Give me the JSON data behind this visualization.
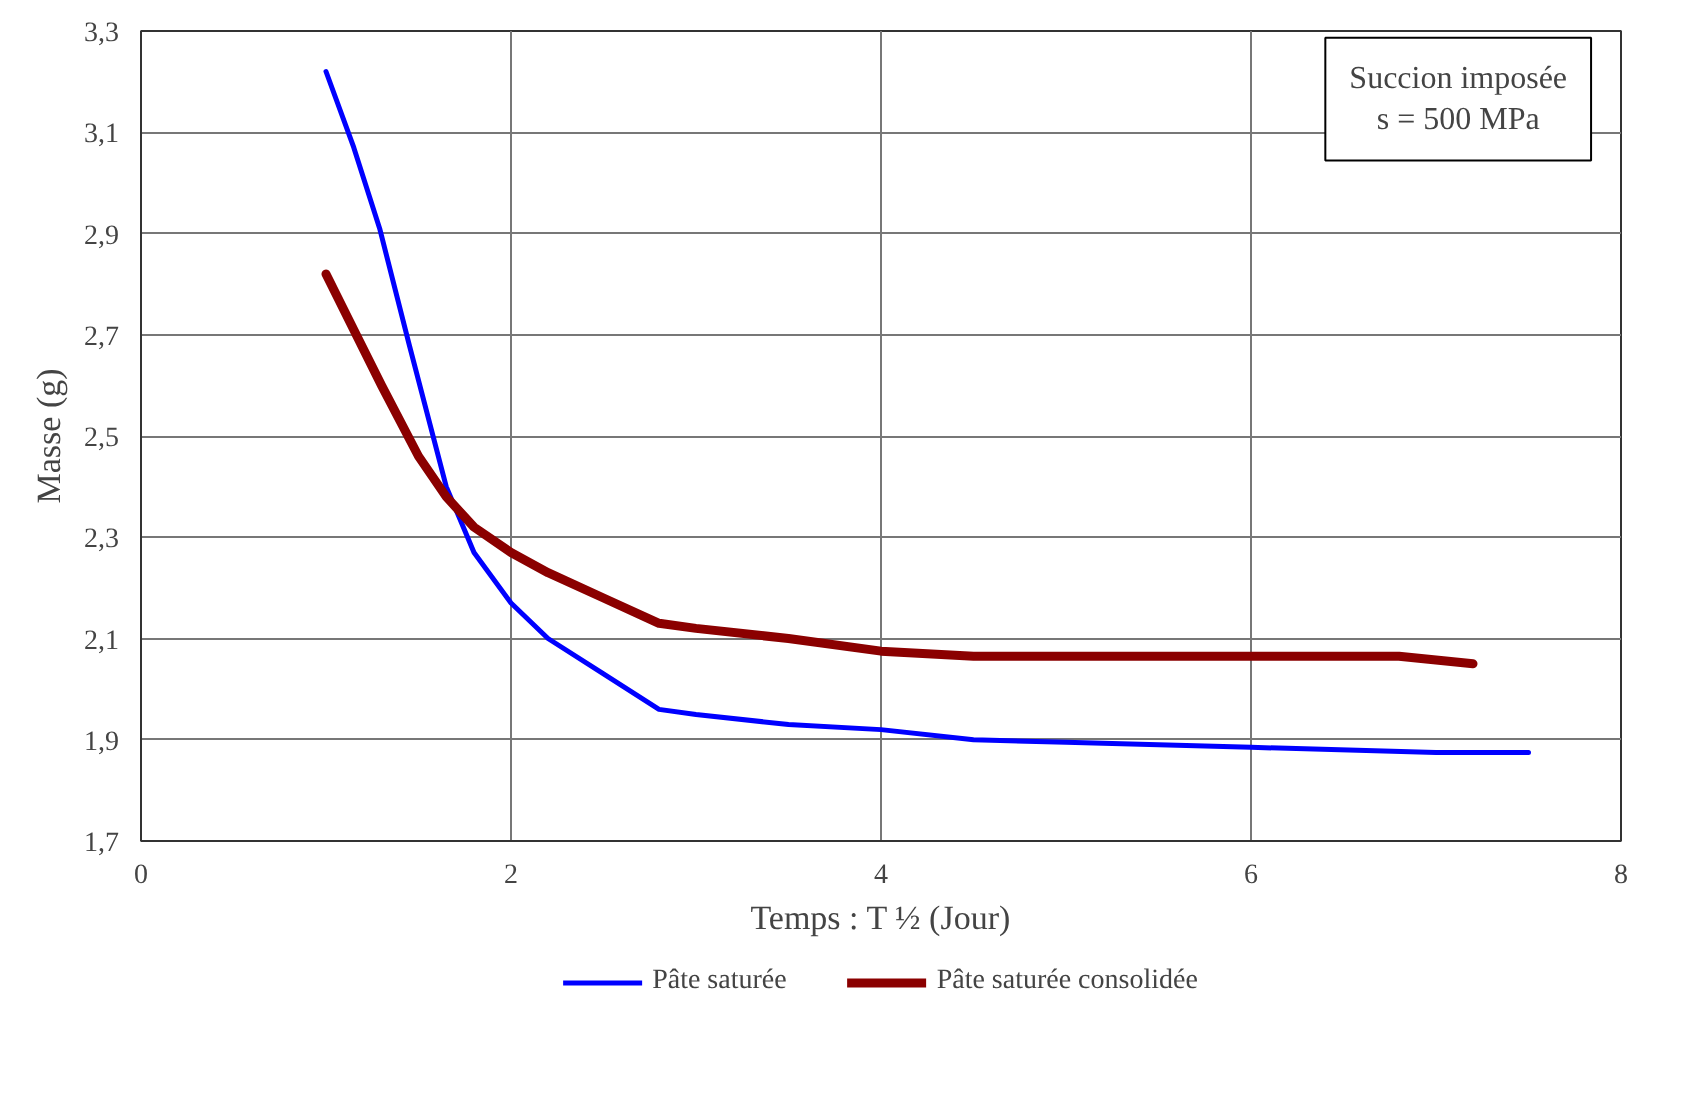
{
  "chart_data": {
    "type": "line",
    "xlabel": "Temps : T ½ (Jour)",
    "ylabel": "Masse (g)",
    "annotations": [
      "Succion imposée\ns = 500 MPa"
    ],
    "series": [
      {
        "name": "Pâte saturée",
        "color": "#0000ff",
        "x": [
          1.0,
          1.15,
          1.29,
          1.45,
          1.65,
          1.8,
          2.0,
          2.2,
          2.5,
          2.8,
          3.0,
          3.5,
          4.0,
          4.5,
          5.0,
          6.0,
          7.0,
          7.5
        ],
        "values": [
          3.22,
          3.07,
          2.91,
          2.68,
          2.4,
          2.27,
          2.17,
          2.1,
          2.03,
          1.96,
          1.95,
          1.93,
          1.92,
          1.9,
          1.895,
          1.885,
          1.875,
          1.875
        ]
      },
      {
        "name": "Pâte saturée consolidée",
        "color": "#8b0000",
        "x": [
          1.0,
          1.15,
          1.3,
          1.5,
          1.65,
          1.8,
          2.0,
          2.2,
          2.5,
          2.8,
          3.0,
          3.5,
          4.0,
          4.5,
          5.0,
          6.0,
          6.8,
          7.2
        ],
        "values": [
          2.82,
          2.71,
          2.6,
          2.46,
          2.38,
          2.32,
          2.27,
          2.23,
          2.18,
          2.13,
          2.12,
          2.1,
          2.075,
          2.065,
          2.065,
          2.065,
          2.065,
          2.05
        ]
      }
    ],
    "xlim": [
      0,
      8
    ],
    "xticks": [
      0,
      2,
      4,
      6,
      8
    ],
    "ylim": [
      1.7,
      3.3
    ],
    "yticks": [
      {
        "value": 1.7,
        "label": "1,7"
      },
      {
        "value": 1.9,
        "label": "1,9"
      },
      {
        "value": 2.1,
        "label": "2,1"
      },
      {
        "value": 2.3,
        "label": "2,3"
      },
      {
        "value": 2.5,
        "label": "2,5"
      },
      {
        "value": 2.7,
        "label": "2,7"
      },
      {
        "value": 2.9,
        "label": "2,9"
      },
      {
        "value": 3.1,
        "label": "3,1"
      },
      {
        "value": 3.3,
        "label": "3,3"
      }
    ],
    "grid": true,
    "legend": "bottom",
    "marker": "none",
    "line_style": "solid"
  }
}
